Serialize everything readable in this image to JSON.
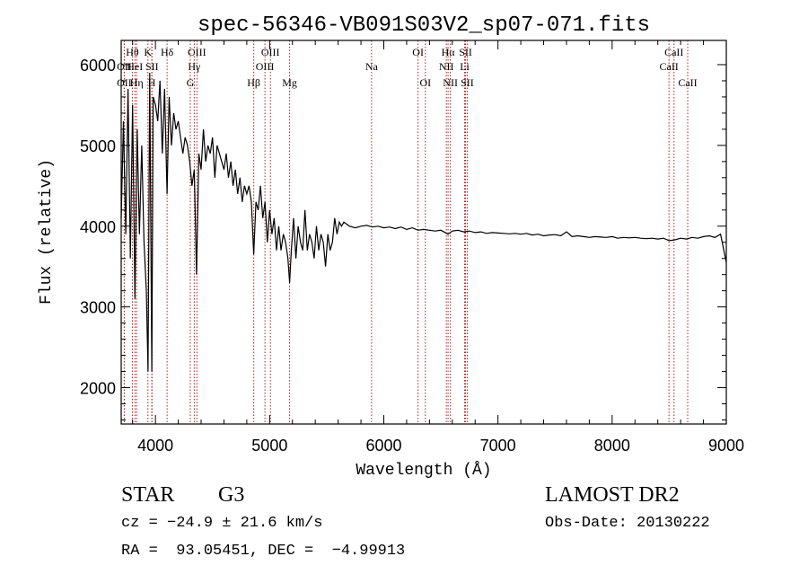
{
  "chart_data": {
    "type": "line",
    "title": "spec-56346-VB091S03V2_sp07-071.fits",
    "xlabel": "Wavelength (Å)",
    "ylabel": "Flux (relative)",
    "xlim": [
      3700,
      9000
    ],
    "ylim": [
      1550,
      6300
    ],
    "xticks": [
      4000,
      5000,
      6000,
      7000,
      8000,
      9000
    ],
    "yticks": [
      2000,
      3000,
      4000,
      5000,
      6000
    ],
    "series": [
      {
        "x": [
          3700,
          3720,
          3740,
          3760,
          3780,
          3800,
          3820,
          3840,
          3860,
          3880,
          3900,
          3920,
          3935,
          3950,
          3968,
          3980,
          4000,
          4020,
          4040,
          4060,
          4080,
          4102,
          4120,
          4140,
          4160,
          4180,
          4200,
          4220,
          4240,
          4260,
          4280,
          4300,
          4320,
          4340,
          4360,
          4380,
          4400,
          4420,
          4440,
          4460,
          4480,
          4500,
          4520,
          4540,
          4560,
          4580,
          4600,
          4620,
          4640,
          4660,
          4680,
          4700,
          4720,
          4740,
          4760,
          4780,
          4800,
          4820,
          4840,
          4861,
          4880,
          4900,
          4920,
          4940,
          4960,
          4980,
          5000,
          5020,
          5040,
          5060,
          5080,
          5100,
          5120,
          5140,
          5160,
          5175,
          5190,
          5210,
          5230,
          5250,
          5270,
          5290,
          5310,
          5330,
          5350,
          5370,
          5390,
          5410,
          5430,
          5450,
          5470,
          5490,
          5510,
          5530,
          5550,
          5570,
          5590,
          5610,
          5630,
          5650,
          5700,
          5750,
          5800,
          5850,
          5900,
          5950,
          6000,
          6050,
          6100,
          6150,
          6200,
          6250,
          6300,
          6350,
          6400,
          6450,
          6500,
          6563,
          6600,
          6650,
          6700,
          6750,
          6800,
          6850,
          6900,
          6950,
          7000,
          7050,
          7100,
          7150,
          7200,
          7250,
          7300,
          7350,
          7400,
          7450,
          7500,
          7550,
          7600,
          7650,
          7700,
          7750,
          7800,
          7850,
          7900,
          7950,
          8000,
          8050,
          8100,
          8150,
          8200,
          8250,
          8300,
          8350,
          8400,
          8450,
          8500,
          8550,
          8600,
          8650,
          8700,
          8750,
          8800,
          8850,
          8900,
          8950,
          9000
        ],
        "y": [
          4100,
          5300,
          3900,
          5700,
          3600,
          5500,
          3100,
          5200,
          3900,
          5000,
          3800,
          3200,
          2200,
          5900,
          2200,
          5600,
          5500,
          5300,
          5800,
          4900,
          5700,
          4400,
          5600,
          5000,
          5400,
          5200,
          5300,
          5100,
          4900,
          5100,
          5000,
          4800,
          4500,
          4700,
          3400,
          4900,
          4700,
          5200,
          4800,
          5000,
          4900,
          5100,
          4600,
          5000,
          4900,
          4800,
          4700,
          4900,
          4600,
          4800,
          4500,
          4700,
          4400,
          4600,
          4300,
          4500,
          4400,
          4500,
          4300,
          3650,
          4300,
          4200,
          4500,
          4100,
          4300,
          3800,
          4200,
          3900,
          4100,
          3700,
          4000,
          3700,
          3900,
          3800,
          3600,
          3300,
          3700,
          4100,
          3600,
          4000,
          3800,
          3700,
          4200,
          3700,
          3900,
          3800,
          3600,
          4000,
          3700,
          3900,
          3800,
          3500,
          3900,
          3700,
          3800,
          4100,
          3900,
          4050,
          4000,
          4050,
          4000,
          3980,
          4000,
          4010,
          3990,
          4000,
          3980,
          3990,
          3970,
          3990,
          3960,
          3980,
          3950,
          3960,
          3950,
          3940,
          3950,
          3900,
          3940,
          3950,
          3930,
          3940,
          3920,
          3930,
          3910,
          3920,
          3915,
          3910,
          3905,
          3910,
          3900,
          3910,
          3890,
          3900,
          3880,
          3890,
          3895,
          3880,
          3930,
          3870,
          3880,
          3870,
          3860,
          3870,
          3865,
          3860,
          3870,
          3850,
          3860,
          3855,
          3860,
          3850,
          3845,
          3850,
          3840,
          3850,
          3820,
          3830,
          3850,
          3840,
          3860,
          3850,
          3870,
          3880,
          3860,
          3900,
          3550
        ]
      }
    ],
    "lines": [
      {
        "label": "Hθ",
        "x": 3798,
        "row": 1
      },
      {
        "label": "OII",
        "x": 3727,
        "row": 2
      },
      {
        "label": "OII",
        "x": 3727,
        "row": 3
      },
      {
        "label": "HeI",
        "x": 3820,
        "row": 2
      },
      {
        "label": "Hη",
        "x": 3835,
        "row": 3
      },
      {
        "label": "K",
        "x": 3934,
        "row": 1
      },
      {
        "label": "SII",
        "x": 3970,
        "row": 2
      },
      {
        "label": "H",
        "x": 3968,
        "row": 3
      },
      {
        "label": "Hδ",
        "x": 4102,
        "row": 1
      },
      {
        "label": "OIII",
        "x": 4363,
        "row": 1
      },
      {
        "label": "Hγ",
        "x": 4340,
        "row": 2
      },
      {
        "label": "G",
        "x": 4305,
        "row": 3
      },
      {
        "label": "OIII",
        "x": 5007,
        "row": 1
      },
      {
        "label": "OIII",
        "x": 4959,
        "row": 2
      },
      {
        "label": "Hβ",
        "x": 4861,
        "row": 3
      },
      {
        "label": "Mg",
        "x": 5175,
        "row": 3
      },
      {
        "label": "Na",
        "x": 5893,
        "row": 2
      },
      {
        "label": "OI",
        "x": 6300,
        "row": 1
      },
      {
        "label": "OI",
        "x": 6364,
        "row": 3
      },
      {
        "label": "Hα",
        "x": 6563,
        "row": 1
      },
      {
        "label": "SII",
        "x": 6716,
        "row": 1
      },
      {
        "label": "NII",
        "x": 6548,
        "row": 2
      },
      {
        "label": "Li",
        "x": 6708,
        "row": 2
      },
      {
        "label": "NII",
        "x": 6583,
        "row": 3
      },
      {
        "label": "SII",
        "x": 6731,
        "row": 3
      },
      {
        "label": "CaII",
        "x": 8542,
        "row": 1
      },
      {
        "label": "CaII",
        "x": 8498,
        "row": 2
      },
      {
        "label": "CaII",
        "x": 8662,
        "row": 3
      }
    ]
  },
  "info": {
    "object_class": "STAR",
    "subclass": "G3",
    "survey": "LAMOST DR2",
    "cz": "cz = −24.9 ± 21.6 km/s",
    "coords": "RA =  93.05451, DEC =  −4.99913",
    "obs_date": "Obs-Date: 20130222"
  },
  "colors": {
    "spectrum": "#000000",
    "line_markers": "#b22222",
    "background": "#ffffff"
  }
}
